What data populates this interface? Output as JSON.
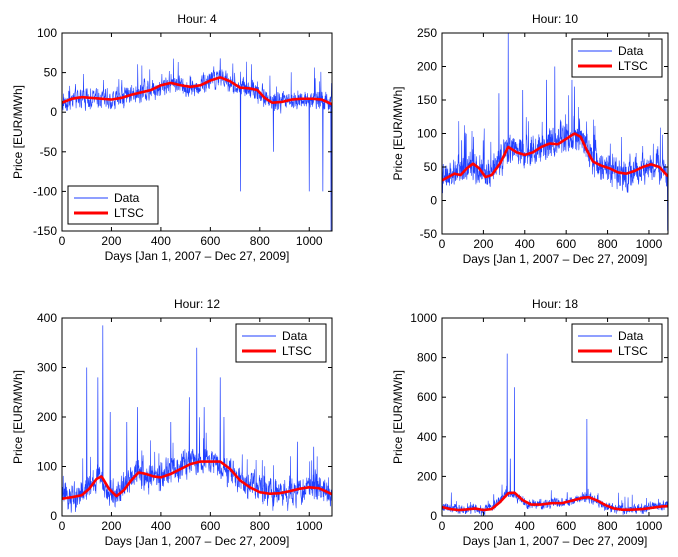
{
  "chart_data": [
    {
      "type": "line",
      "title": "Hour: 4",
      "xlabel": "Days [Jan 1, 2007 – Dec 27, 2009]",
      "ylabel": "Price [EUR/MWh]",
      "xlim": [
        0,
        1092
      ],
      "ylim": [
        -150,
        100
      ],
      "xticks": [
        0,
        200,
        400,
        600,
        800,
        1000
      ],
      "yticks": [
        -150,
        -100,
        -50,
        0,
        50,
        100
      ],
      "legend_position": "bottom-left",
      "series": [
        {
          "name": "Data",
          "color": "#1f3fff",
          "base": [
            [
              0,
              12
            ],
            [
              50,
              18
            ],
            [
              100,
              18
            ],
            [
              150,
              17
            ],
            [
              200,
              15
            ],
            [
              250,
              20
            ],
            [
              300,
              26
            ],
            [
              350,
              28
            ],
            [
              400,
              33
            ],
            [
              440,
              38
            ],
            [
              480,
              34
            ],
            [
              520,
              30
            ],
            [
              560,
              34
            ],
            [
              600,
              40
            ],
            [
              640,
              44
            ],
            [
              680,
              38
            ],
            [
              720,
              30
            ],
            [
              760,
              30
            ],
            [
              800,
              24
            ],
            [
              840,
              14
            ],
            [
              880,
              12
            ],
            [
              920,
              15
            ],
            [
              960,
              17
            ],
            [
              1000,
              16
            ],
            [
              1050,
              14
            ],
            [
              1092,
              12
            ]
          ],
          "noise": 10,
          "spikes": [
            [
              722,
              -100
            ],
            [
              855,
              -50
            ],
            [
              1000,
              -100
            ],
            [
              1055,
              -100
            ],
            [
              1088,
              -150
            ],
            [
              640,
              68
            ],
            [
              250,
              5
            ]
          ]
        },
        {
          "name": "LTSC",
          "color": "#ff0000",
          "points": [
            [
              0,
              12
            ],
            [
              40,
              17
            ],
            [
              80,
              19
            ],
            [
              120,
              18
            ],
            [
              160,
              17
            ],
            [
              200,
              16
            ],
            [
              240,
              18
            ],
            [
              280,
              22
            ],
            [
              320,
              25
            ],
            [
              360,
              28
            ],
            [
              400,
              34
            ],
            [
              440,
              37
            ],
            [
              480,
              34
            ],
            [
              520,
              32
            ],
            [
              560,
              34
            ],
            [
              600,
              40
            ],
            [
              640,
              44
            ],
            [
              680,
              39
            ],
            [
              720,
              31
            ],
            [
              760,
              30
            ],
            [
              790,
              28
            ],
            [
              820,
              18
            ],
            [
              850,
              12
            ],
            [
              890,
              13
            ],
            [
              930,
              16
            ],
            [
              970,
              17
            ],
            [
              1010,
              17
            ],
            [
              1050,
              16
            ],
            [
              1092,
              10
            ]
          ]
        }
      ]
    },
    {
      "type": "line",
      "title": "Hour: 10",
      "xlabel": "Days [Jan 1, 2007 – Dec 27, 2009]",
      "ylabel": "Price [EUR/MWh]",
      "xlim": [
        0,
        1092
      ],
      "ylim": [
        -50,
        250
      ],
      "xticks": [
        0,
        200,
        400,
        600,
        800,
        1000
      ],
      "yticks": [
        -50,
        0,
        50,
        100,
        150,
        200,
        250
      ],
      "legend_position": "top-right",
      "series": [
        {
          "name": "Data",
          "color": "#1f3fff",
          "base": [
            [
              0,
              30
            ],
            [
              50,
              38
            ],
            [
              100,
              45
            ],
            [
              150,
              55
            ],
            [
              200,
              42
            ],
            [
              250,
              45
            ],
            [
              300,
              70
            ],
            [
              330,
              80
            ],
            [
              380,
              72
            ],
            [
              420,
              70
            ],
            [
              460,
              78
            ],
            [
              500,
              85
            ],
            [
              560,
              88
            ],
            [
              600,
              95
            ],
            [
              640,
              100
            ],
            [
              680,
              90
            ],
            [
              720,
              65
            ],
            [
              760,
              55
            ],
            [
              800,
              48
            ],
            [
              850,
              42
            ],
            [
              900,
              40
            ],
            [
              950,
              45
            ],
            [
              1000,
              52
            ],
            [
              1040,
              55
            ],
            [
              1092,
              35
            ]
          ],
          "noise": 18,
          "spikes": [
            [
              320,
              250
            ],
            [
              275,
              160
            ],
            [
              390,
              165
            ],
            [
              505,
              180
            ],
            [
              545,
              200
            ],
            [
              628,
              180
            ],
            [
              640,
              170
            ],
            [
              95,
              90
            ],
            [
              152,
              95
            ],
            [
              1090,
              -45
            ]
          ]
        },
        {
          "name": "LTSC",
          "color": "#ff0000",
          "points": [
            [
              0,
              30
            ],
            [
              30,
              35
            ],
            [
              60,
              40
            ],
            [
              90,
              38
            ],
            [
              120,
              48
            ],
            [
              150,
              55
            ],
            [
              180,
              48
            ],
            [
              210,
              35
            ],
            [
              240,
              38
            ],
            [
              280,
              55
            ],
            [
              320,
              80
            ],
            [
              360,
              72
            ],
            [
              400,
              68
            ],
            [
              440,
              72
            ],
            [
              480,
              80
            ],
            [
              520,
              85
            ],
            [
              560,
              84
            ],
            [
              600,
              92
            ],
            [
              640,
              100
            ],
            [
              670,
              95
            ],
            [
              700,
              75
            ],
            [
              730,
              58
            ],
            [
              770,
              52
            ],
            [
              810,
              48
            ],
            [
              850,
              42
            ],
            [
              890,
              40
            ],
            [
              930,
              44
            ],
            [
              970,
              50
            ],
            [
              1010,
              54
            ],
            [
              1050,
              50
            ],
            [
              1092,
              36
            ]
          ]
        }
      ]
    },
    {
      "type": "line",
      "title": "Hour: 12",
      "xlabel": "Days [Jan 1, 2007 – Dec 27, 2009]",
      "ylabel": "Price [EUR/MWh]",
      "xlim": [
        0,
        1092
      ],
      "ylim": [
        0,
        400
      ],
      "xticks": [
        0,
        200,
        400,
        600,
        800,
        1000
      ],
      "yticks": [
        0,
        100,
        200,
        300,
        400
      ],
      "legend_position": "top-right",
      "series": [
        {
          "name": "Data",
          "color": "#1f3fff",
          "base": [
            [
              0,
              35
            ],
            [
              40,
              40
            ],
            [
              80,
              45
            ],
            [
              120,
              60
            ],
            [
              150,
              80
            ],
            [
              180,
              60
            ],
            [
              210,
              40
            ],
            [
              250,
              55
            ],
            [
              300,
              90
            ],
            [
              340,
              82
            ],
            [
              380,
              75
            ],
            [
              420,
              85
            ],
            [
              460,
              95
            ],
            [
              520,
              110
            ],
            [
              580,
              115
            ],
            [
              640,
              110
            ],
            [
              680,
              90
            ],
            [
              720,
              70
            ],
            [
              760,
              60
            ],
            [
              800,
              50
            ],
            [
              850,
              45
            ],
            [
              900,
              48
            ],
            [
              950,
              52
            ],
            [
              1000,
              58
            ],
            [
              1040,
              58
            ],
            [
              1092,
              45
            ]
          ],
          "noise": 22,
          "spikes": [
            [
              100,
              300
            ],
            [
              145,
              280
            ],
            [
              165,
              385
            ],
            [
              195,
              210
            ],
            [
              262,
              190
            ],
            [
              305,
              220
            ],
            [
              440,
              190
            ],
            [
              515,
              240
            ],
            [
              545,
              340
            ],
            [
              575,
              220
            ],
            [
              640,
              280
            ],
            [
              655,
              200
            ],
            [
              952,
              150
            ],
            [
              1018,
              140
            ]
          ]
        },
        {
          "name": "LTSC",
          "color": "#ff0000",
          "points": [
            [
              0,
              35
            ],
            [
              40,
              38
            ],
            [
              80,
              42
            ],
            [
              110,
              55
            ],
            [
              140,
              75
            ],
            [
              160,
              80
            ],
            [
              190,
              55
            ],
            [
              220,
              40
            ],
            [
              250,
              52
            ],
            [
              280,
              72
            ],
            [
              310,
              88
            ],
            [
              340,
              85
            ],
            [
              370,
              80
            ],
            [
              400,
              78
            ],
            [
              440,
              85
            ],
            [
              480,
              95
            ],
            [
              520,
              105
            ],
            [
              560,
              110
            ],
            [
              600,
              110
            ],
            [
              640,
              110
            ],
            [
              680,
              95
            ],
            [
              720,
              72
            ],
            [
              760,
              58
            ],
            [
              800,
              48
            ],
            [
              840,
              45
            ],
            [
              880,
              46
            ],
            [
              920,
              50
            ],
            [
              960,
              55
            ],
            [
              1000,
              58
            ],
            [
              1040,
              56
            ],
            [
              1092,
              44
            ]
          ]
        }
      ]
    },
    {
      "type": "line",
      "title": "Hour: 18",
      "xlabel": "Days [Jan 1, 2007 – Dec 27, 2009]",
      "ylabel": "Price [EUR/MWh]",
      "xlim": [
        0,
        1092
      ],
      "ylim": [
        0,
        1000
      ],
      "xticks": [
        0,
        200,
        400,
        600,
        800,
        1000
      ],
      "yticks": [
        0,
        200,
        400,
        600,
        800,
        1000
      ],
      "legend_position": "top-right",
      "series": [
        {
          "name": "Data",
          "color": "#1f3fff",
          "base": [
            [
              0,
              45
            ],
            [
              50,
              38
            ],
            [
              100,
              30
            ],
            [
              150,
              35
            ],
            [
              200,
              25
            ],
            [
              250,
              50
            ],
            [
              300,
              100
            ],
            [
              330,
              120
            ],
            [
              380,
              80
            ],
            [
              420,
              55
            ],
            [
              480,
              58
            ],
            [
              540,
              65
            ],
            [
              600,
              68
            ],
            [
              660,
              85
            ],
            [
              700,
              100
            ],
            [
              740,
              80
            ],
            [
              780,
              55
            ],
            [
              820,
              40
            ],
            [
              860,
              35
            ],
            [
              920,
              32
            ],
            [
              980,
              38
            ],
            [
              1040,
              50
            ],
            [
              1092,
              55
            ]
          ],
          "noise": 18,
          "spikes": [
            [
              315,
              820
            ],
            [
              350,
              650
            ],
            [
              330,
              290
            ],
            [
              700,
              490
            ],
            [
              250,
              110
            ],
            [
              605,
              120
            ]
          ]
        },
        {
          "name": "LTSC",
          "color": "#ff0000",
          "points": [
            [
              0,
              45
            ],
            [
              40,
              35
            ],
            [
              80,
              30
            ],
            [
              120,
              33
            ],
            [
              160,
              38
            ],
            [
              200,
              30
            ],
            [
              240,
              35
            ],
            [
              280,
              70
            ],
            [
              320,
              115
            ],
            [
              350,
              118
            ],
            [
              390,
              80
            ],
            [
              430,
              58
            ],
            [
              480,
              58
            ],
            [
              530,
              65
            ],
            [
              580,
              65
            ],
            [
              630,
              78
            ],
            [
              680,
              92
            ],
            [
              710,
              95
            ],
            [
              750,
              78
            ],
            [
              790,
              55
            ],
            [
              830,
              38
            ],
            [
              870,
              32
            ],
            [
              920,
              32
            ],
            [
              970,
              35
            ],
            [
              1020,
              42
            ],
            [
              1060,
              48
            ],
            [
              1092,
              50
            ]
          ]
        }
      ]
    }
  ]
}
